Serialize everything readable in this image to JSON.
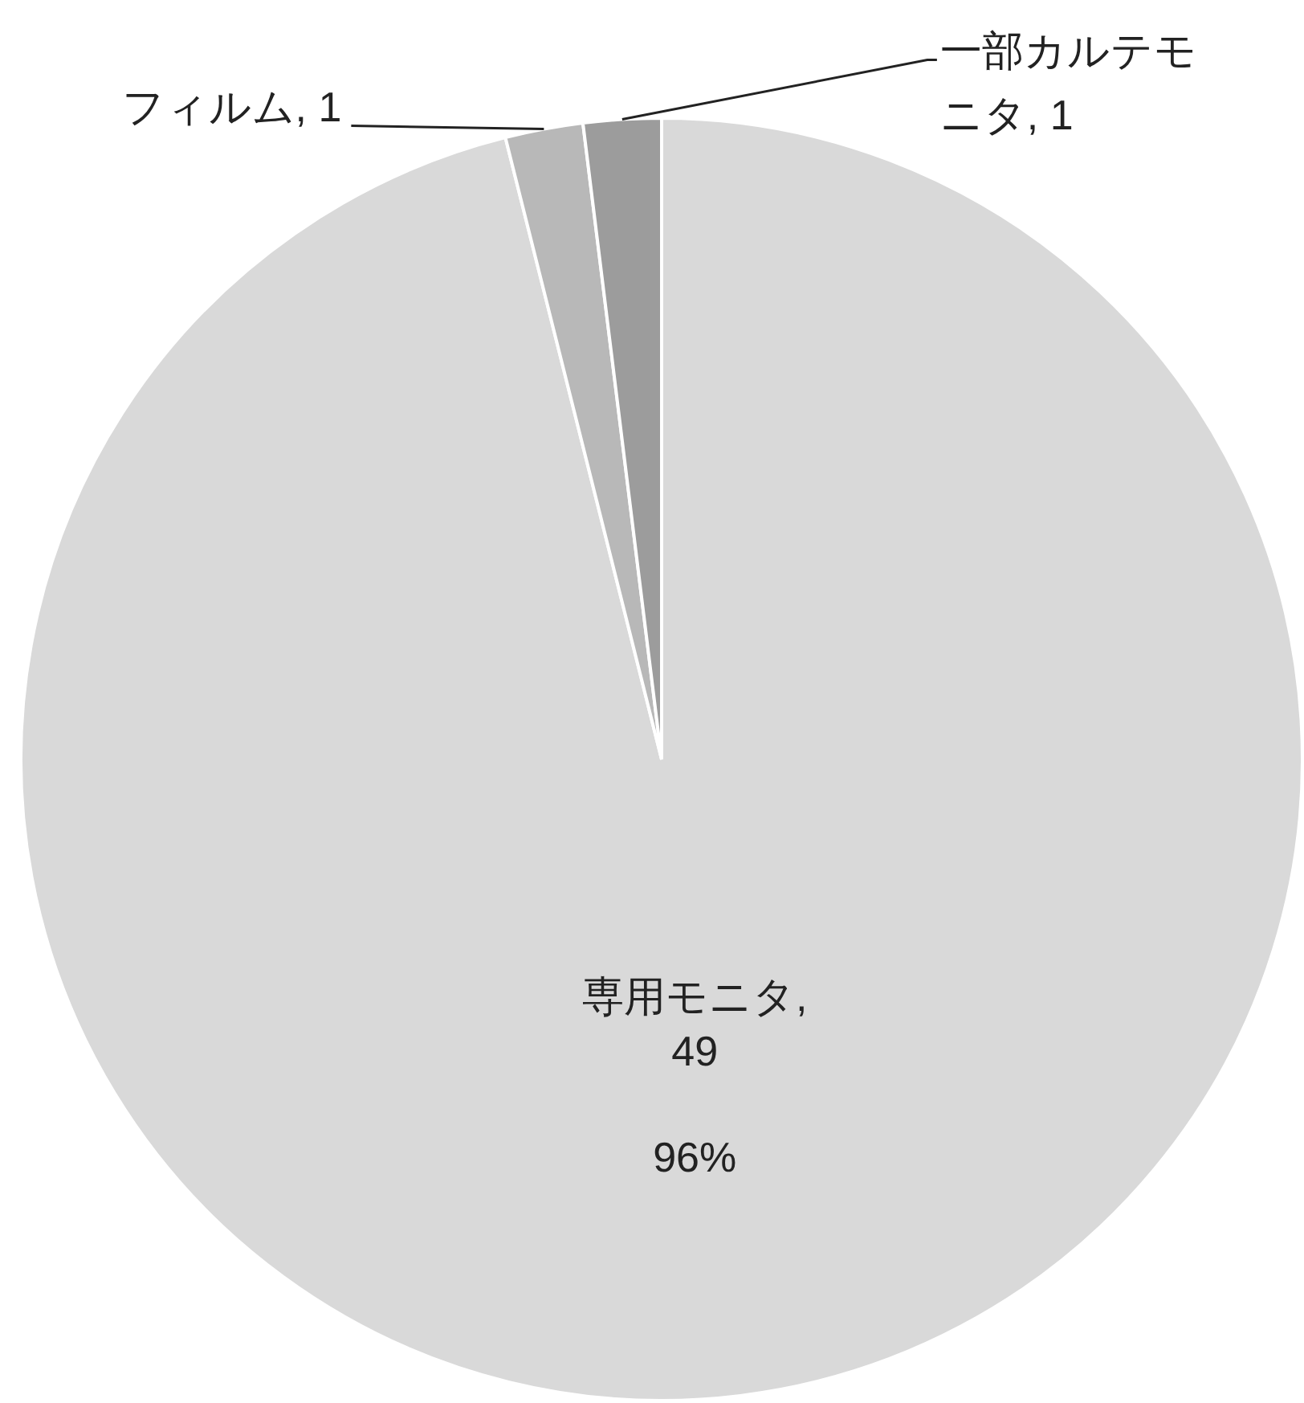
{
  "chart_data": {
    "type": "pie",
    "categories": [
      "専用モニタ",
      "フィルム",
      "一部カルテモニタ"
    ],
    "values": [
      49,
      1,
      1
    ],
    "colors": [
      "#d9d9d9",
      "#b8b8b8",
      "#9c9c9c"
    ],
    "value_labels": [
      ", 49",
      ", 1",
      ", 1"
    ],
    "annotations": [
      "96%"
    ],
    "legend": false
  }
}
